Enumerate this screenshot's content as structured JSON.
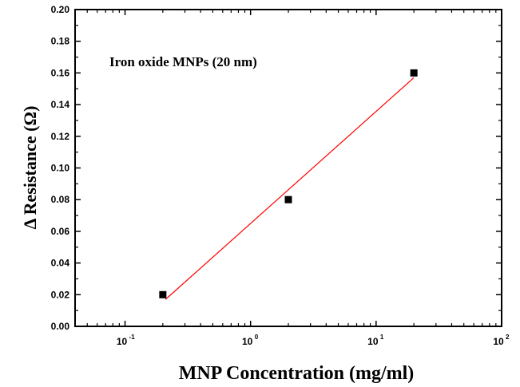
{
  "chart_data": {
    "type": "scatter",
    "xlabel": "MNP Concentration (mg/ml)",
    "ylabel": "Δ Resistance (Ω)",
    "annotation": "Iron oxide MNPs (20 nm)",
    "x_scale": "log",
    "xlim": [
      0.04,
      100
    ],
    "ylim": [
      0,
      0.2
    ],
    "x_ticks": [
      {
        "base": "10",
        "exp": "-1",
        "value": 0.1
      },
      {
        "base": "10",
        "exp": "0",
        "value": 1
      },
      {
        "base": "10",
        "exp": "1",
        "value": 10
      },
      {
        "base": "10",
        "exp": "2",
        "value": 100
      }
    ],
    "y_ticks": [
      "0.00",
      "0.02",
      "0.04",
      "0.06",
      "0.08",
      "0.10",
      "0.12",
      "0.14",
      "0.16",
      "0.18",
      "0.20"
    ],
    "series": [
      {
        "points": [
          {
            "x": 0.2,
            "y": 0.02
          },
          {
            "x": 2,
            "y": 0.08
          },
          {
            "x": 20,
            "y": 0.16
          }
        ],
        "marker": "square",
        "color": "#000000"
      }
    ],
    "fit_line": {
      "x": [
        0.21,
        20
      ],
      "y": [
        0.017,
        0.157
      ],
      "color": "#ff0000"
    },
    "grid": false,
    "legend": "none"
  }
}
